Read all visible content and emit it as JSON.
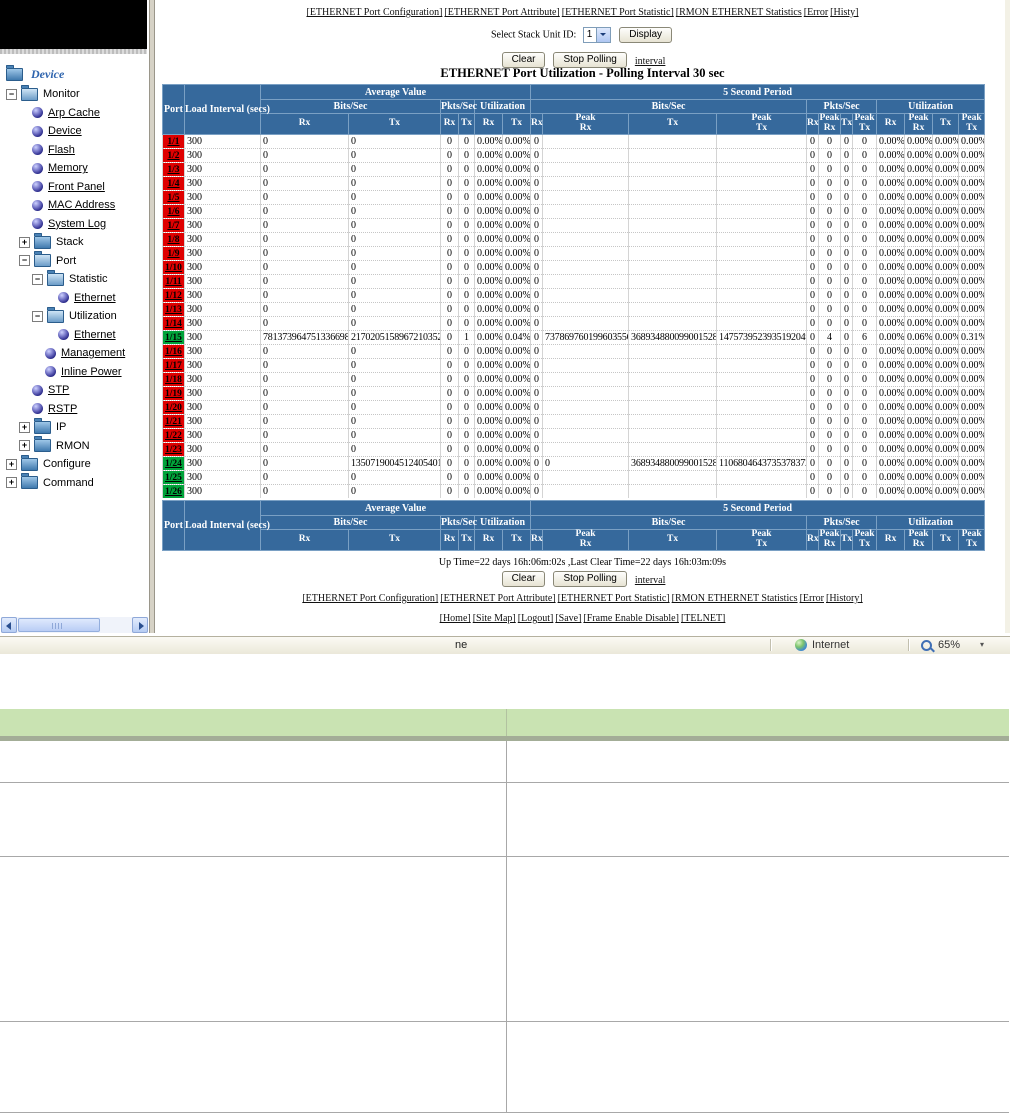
{
  "sidebar": {
    "root_label": "Device",
    "items": [
      {
        "label": "Monitor",
        "level": 0,
        "icon": "folder-open",
        "expander": "minus",
        "link": false
      },
      {
        "label": "Arp Cache",
        "level": 1,
        "icon": "ball",
        "link": true
      },
      {
        "label": "Device",
        "level": 1,
        "icon": "ball",
        "link": true
      },
      {
        "label": "Flash",
        "level": 1,
        "icon": "ball",
        "link": true
      },
      {
        "label": "Memory",
        "level": 1,
        "icon": "ball",
        "link": true
      },
      {
        "label": "Front Panel",
        "level": 1,
        "icon": "ball",
        "link": true
      },
      {
        "label": "MAC Address",
        "level": 1,
        "icon": "ball",
        "link": true
      },
      {
        "label": "System Log",
        "level": 1,
        "icon": "ball",
        "link": true
      },
      {
        "label": "Stack",
        "level": 1,
        "icon": "folder",
        "expander": "plus",
        "link": false
      },
      {
        "label": "Port",
        "level": 1,
        "icon": "folder-open",
        "expander": "minus",
        "link": false
      },
      {
        "label": "Statistic",
        "level": 2,
        "icon": "folder-open",
        "expander": "minus",
        "link": false
      },
      {
        "label": "Ethernet",
        "level": 3,
        "icon": "ball",
        "link": true
      },
      {
        "label": "Utilization",
        "level": 2,
        "icon": "folder-open",
        "expander": "minus",
        "link": false
      },
      {
        "label": "Ethernet",
        "level": 3,
        "icon": "ball",
        "link": true
      },
      {
        "label": "Management",
        "level": 2,
        "icon": "ball",
        "link": true
      },
      {
        "label": "Inline Power",
        "level": 2,
        "icon": "ball",
        "link": true
      },
      {
        "label": "STP",
        "level": 1,
        "icon": "ball",
        "link": true
      },
      {
        "label": "RSTP",
        "level": 1,
        "icon": "ball",
        "link": true
      },
      {
        "label": "IP",
        "level": 1,
        "icon": "folder",
        "expander": "plus",
        "link": false
      },
      {
        "label": "RMON",
        "level": 1,
        "icon": "folder",
        "expander": "plus",
        "link": false
      },
      {
        "label": "Configure",
        "level": 0,
        "icon": "folder",
        "expander": "plus",
        "link": false
      },
      {
        "label": "Command",
        "level": 0,
        "icon": "folder",
        "expander": "plus",
        "link": false
      }
    ]
  },
  "main": {
    "nav_top": [
      "[ETHERNET Port Configuration]",
      "[ETHERNET Port Attribute]",
      "[ETHERNET Port Statistic]",
      "[RMON ETHERNET Statistics",
      "[Error",
      "[Histy]"
    ],
    "nav_bottom": [
      "[ETHERNET Port Configuration]",
      "[ETHERNET Port Attribute]",
      "[ETHERNET Port Statistic]",
      "[RMON ETHERNET Statistics",
      "[Error",
      "[History]"
    ],
    "footer_links": [
      "[Home]",
      "[Site Map]",
      "[Logout]",
      "[Save]",
      "[Frame Enable Disable]",
      "[TELNET]"
    ],
    "stack_select": {
      "label": "Select Stack Unit ID:",
      "value": "1",
      "display_button": "Display"
    },
    "toolbar": {
      "clear": "Clear",
      "stop_polling": "Stop Polling",
      "interval_link": "interval"
    },
    "title": "ETHERNET Port Utilization - Polling Interval 30 sec",
    "uptime": "Up Time=22 days 16h:06m:02s ,Last Clear Time=22 days 16h:03m:09s"
  },
  "table": {
    "headers": {
      "port": "Port",
      "load": "Load Interval (secs)",
      "avg_group": "Average Value",
      "sec_group": "5 Second Period",
      "bits": "Bits/Sec",
      "pkts": "Pkts/Sec",
      "util": "Utilization",
      "rx": "Rx",
      "tx": "Tx",
      "peak_rx": "Peak\nRx",
      "peak_tx": "Peak\nTx"
    },
    "rows": [
      {
        "port": "1/1",
        "status": "down",
        "cells": [
          "300",
          "0",
          "0",
          "0",
          "0",
          "0.00%",
          "0.00%",
          "0",
          "",
          "",
          "",
          "0",
          "0",
          "0",
          "0",
          "0.00%",
          "0.00%",
          "0.00%",
          "0.00%"
        ]
      },
      {
        "port": "1/2",
        "status": "down",
        "cells": [
          "300",
          "0",
          "0",
          "0",
          "0",
          "0.00%",
          "0.00%",
          "0",
          "",
          "",
          "",
          "0",
          "0",
          "0",
          "0",
          "0.00%",
          "0.00%",
          "0.00%",
          "0.00%"
        ]
      },
      {
        "port": "1/3",
        "status": "down",
        "cells": [
          "300",
          "0",
          "0",
          "0",
          "0",
          "0.00%",
          "0.00%",
          "0",
          "",
          "",
          "",
          "0",
          "0",
          "0",
          "0",
          "0.00%",
          "0.00%",
          "0.00%",
          "0.00%"
        ]
      },
      {
        "port": "1/4",
        "status": "down",
        "cells": [
          "300",
          "0",
          "0",
          "0",
          "0",
          "0.00%",
          "0.00%",
          "0",
          "",
          "",
          "",
          "0",
          "0",
          "0",
          "0",
          "0.00%",
          "0.00%",
          "0.00%",
          "0.00%"
        ]
      },
      {
        "port": "1/5",
        "status": "down",
        "cells": [
          "300",
          "0",
          "0",
          "0",
          "0",
          "0.00%",
          "0.00%",
          "0",
          "",
          "",
          "",
          "0",
          "0",
          "0",
          "0",
          "0.00%",
          "0.00%",
          "0.00%",
          "0.00%"
        ]
      },
      {
        "port": "1/6",
        "status": "down",
        "cells": [
          "300",
          "0",
          "0",
          "0",
          "0",
          "0.00%",
          "0.00%",
          "0",
          "",
          "",
          "",
          "0",
          "0",
          "0",
          "0",
          "0.00%",
          "0.00%",
          "0.00%",
          "0.00%"
        ]
      },
      {
        "port": "1/7",
        "status": "down",
        "cells": [
          "300",
          "0",
          "0",
          "0",
          "0",
          "0.00%",
          "0.00%",
          "0",
          "",
          "",
          "",
          "0",
          "0",
          "0",
          "0",
          "0.00%",
          "0.00%",
          "0.00%",
          "0.00%"
        ]
      },
      {
        "port": "1/8",
        "status": "down",
        "cells": [
          "300",
          "0",
          "0",
          "0",
          "0",
          "0.00%",
          "0.00%",
          "0",
          "",
          "",
          "",
          "0",
          "0",
          "0",
          "0",
          "0.00%",
          "0.00%",
          "0.00%",
          "0.00%"
        ]
      },
      {
        "port": "1/9",
        "status": "down",
        "cells": [
          "300",
          "0",
          "0",
          "0",
          "0",
          "0.00%",
          "0.00%",
          "0",
          "",
          "",
          "",
          "0",
          "0",
          "0",
          "0",
          "0.00%",
          "0.00%",
          "0.00%",
          "0.00%"
        ]
      },
      {
        "port": "1/10",
        "status": "down",
        "cells": [
          "300",
          "0",
          "0",
          "0",
          "0",
          "0.00%",
          "0.00%",
          "0",
          "",
          "",
          "",
          "0",
          "0",
          "0",
          "0",
          "0.00%",
          "0.00%",
          "0.00%",
          "0.00%"
        ]
      },
      {
        "port": "1/11",
        "status": "down",
        "cells": [
          "300",
          "0",
          "0",
          "0",
          "0",
          "0.00%",
          "0.00%",
          "0",
          "",
          "",
          "",
          "0",
          "0",
          "0",
          "0",
          "0.00%",
          "0.00%",
          "0.00%",
          "0.00%"
        ]
      },
      {
        "port": "1/12",
        "status": "down",
        "cells": [
          "300",
          "0",
          "0",
          "0",
          "0",
          "0.00%",
          "0.00%",
          "0",
          "",
          "",
          "",
          "0",
          "0",
          "0",
          "0",
          "0.00%",
          "0.00%",
          "0.00%",
          "0.00%"
        ]
      },
      {
        "port": "1/13",
        "status": "down",
        "cells": [
          "300",
          "0",
          "0",
          "0",
          "0",
          "0.00%",
          "0.00%",
          "0",
          "",
          "",
          "",
          "0",
          "0",
          "0",
          "0",
          "0.00%",
          "0.00%",
          "0.00%",
          "0.00%"
        ]
      },
      {
        "port": "1/14",
        "status": "down",
        "cells": [
          "300",
          "0",
          "0",
          "0",
          "0",
          "0.00%",
          "0.00%",
          "0",
          "",
          "",
          "",
          "0",
          "0",
          "0",
          "0",
          "0.00%",
          "0.00%",
          "0.00%",
          "0.00%"
        ]
      },
      {
        "port": "1/15",
        "status": "up",
        "cells": [
          "300",
          "7813739647513366984",
          "2170205158967210352",
          "0",
          "1",
          "0.00%",
          "0.04%",
          "0",
          "7378697601996035560",
          "3689348800990015280",
          "14757395239351920496",
          "0",
          "4",
          "0",
          "6",
          "0.00%",
          "0.06%",
          "0.00%",
          "0.31%"
        ]
      },
      {
        "port": "1/16",
        "status": "down",
        "cells": [
          "300",
          "0",
          "0",
          "0",
          "0",
          "0.00%",
          "0.00%",
          "0",
          "",
          "",
          "",
          "0",
          "0",
          "0",
          "0",
          "0.00%",
          "0.00%",
          "0.00%",
          "0.00%"
        ]
      },
      {
        "port": "1/17",
        "status": "down",
        "cells": [
          "300",
          "0",
          "0",
          "0",
          "0",
          "0.00%",
          "0.00%",
          "0",
          "",
          "",
          "",
          "0",
          "0",
          "0",
          "0",
          "0.00%",
          "0.00%",
          "0.00%",
          "0.00%"
        ]
      },
      {
        "port": "1/18",
        "status": "down",
        "cells": [
          "300",
          "0",
          "0",
          "0",
          "0",
          "0.00%",
          "0.00%",
          "0",
          "",
          "",
          "",
          "0",
          "0",
          "0",
          "0",
          "0.00%",
          "0.00%",
          "0.00%",
          "0.00%"
        ]
      },
      {
        "port": "1/19",
        "status": "down",
        "cells": [
          "300",
          "0",
          "0",
          "0",
          "0",
          "0.00%",
          "0.00%",
          "0",
          "",
          "",
          "",
          "0",
          "0",
          "0",
          "0",
          "0.00%",
          "0.00%",
          "0.00%",
          "0.00%"
        ]
      },
      {
        "port": "1/20",
        "status": "down",
        "cells": [
          "300",
          "0",
          "0",
          "0",
          "0",
          "0.00%",
          "0.00%",
          "0",
          "",
          "",
          "",
          "0",
          "0",
          "0",
          "0",
          "0.00%",
          "0.00%",
          "0.00%",
          "0.00%"
        ]
      },
      {
        "port": "1/21",
        "status": "down",
        "cells": [
          "300",
          "0",
          "0",
          "0",
          "0",
          "0.00%",
          "0.00%",
          "0",
          "",
          "",
          "",
          "0",
          "0",
          "0",
          "0",
          "0.00%",
          "0.00%",
          "0.00%",
          "0.00%"
        ]
      },
      {
        "port": "1/22",
        "status": "down",
        "cells": [
          "300",
          "0",
          "0",
          "0",
          "0",
          "0.00%",
          "0.00%",
          "0",
          "",
          "",
          "",
          "0",
          "0",
          "0",
          "0",
          "0.00%",
          "0.00%",
          "0.00%",
          "0.00%"
        ]
      },
      {
        "port": "1/23",
        "status": "down",
        "cells": [
          "300",
          "0",
          "0",
          "0",
          "0",
          "0.00%",
          "0.00%",
          "0",
          "",
          "",
          "",
          "0",
          "0",
          "0",
          "0",
          "0.00%",
          "0.00%",
          "0.00%",
          "0.00%"
        ]
      },
      {
        "port": "1/24",
        "status": "up",
        "cells": [
          "300",
          "0",
          "13507190045124054016",
          "0",
          "0",
          "0.00%",
          "0.00%",
          "0",
          "0",
          "3689348800990015280",
          "11068046437353783720",
          "0",
          "0",
          "0",
          "0",
          "0.00%",
          "0.00%",
          "0.00%",
          "0.00%"
        ]
      },
      {
        "port": "1/25",
        "status": "up",
        "cells": [
          "300",
          "0",
          "0",
          "0",
          "0",
          "0.00%",
          "0.00%",
          "0",
          "",
          "",
          "",
          "0",
          "0",
          "0",
          "0",
          "0.00%",
          "0.00%",
          "0.00%",
          "0.00%"
        ]
      },
      {
        "port": "1/26",
        "status": "up",
        "cells": [
          "300",
          "0",
          "0",
          "0",
          "0",
          "0.00%",
          "0.00%",
          "0",
          "",
          "",
          "",
          "0",
          "0",
          "0",
          "0",
          "0.00%",
          "0.00%",
          "0.00%",
          "0.00%"
        ]
      }
    ]
  },
  "statusbar": {
    "left_text": "ne",
    "zone": "Internet",
    "zoom": "65%"
  },
  "doc_table": {
    "header": [
      "",
      ""
    ],
    "rows": [
      [
        "",
        ""
      ],
      [
        "",
        ""
      ],
      [
        "",
        ""
      ],
      [
        "",
        ""
      ]
    ]
  },
  "colors": {
    "table_header_blue": "#36699c",
    "port_down_red": "#df0000",
    "port_up_green": "#00a33a",
    "doc_header_green": "#c9e3b2",
    "doc_header_band": "#a3ad97"
  }
}
